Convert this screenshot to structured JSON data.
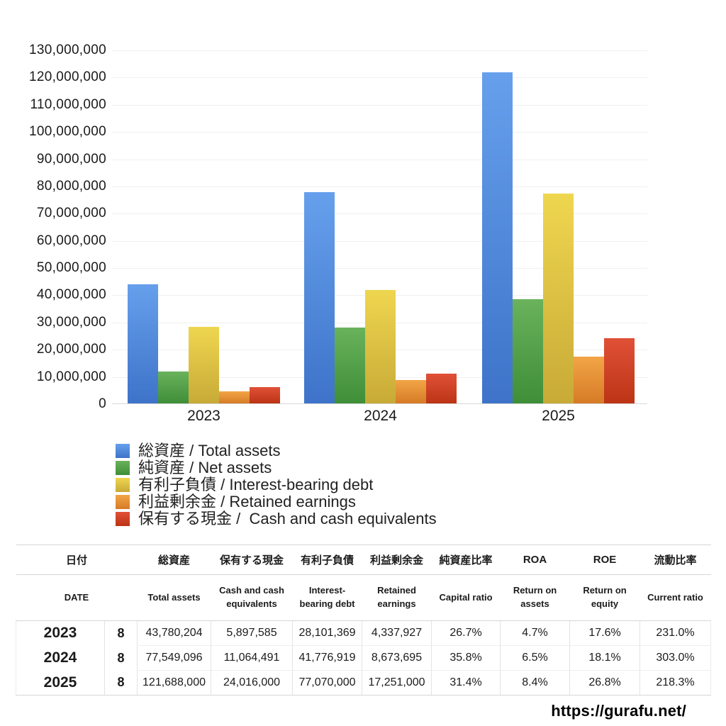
{
  "chart_data": {
    "type": "bar",
    "categories": [
      "2023",
      "2024",
      "2025"
    ],
    "series": [
      {
        "name": "total-assets",
        "label": "総資産 / Total assets",
        "color": "#4a86dd",
        "gradient": [
          "#66a0ec",
          "#3e73c9"
        ],
        "values": [
          43780204,
          77549096,
          121688000
        ]
      },
      {
        "name": "net-assets",
        "label": "純資産 / Net assets",
        "color": "#55a04a",
        "gradient": [
          "#6ab25c",
          "#3f8e38"
        ],
        "values": [
          11700000,
          27800000,
          38200000
        ]
      },
      {
        "name": "interest-bearing-debt",
        "label": "有利子負債 / Interest-bearing debt",
        "color": "#dcc143",
        "gradient": [
          "#efd64f",
          "#c8aa37"
        ],
        "values": [
          28101369,
          41776919,
          77070000
        ]
      },
      {
        "name": "retained-earnings",
        "label": "利益剰余金 / Retained earnings",
        "color": "#e8913a",
        "gradient": [
          "#f2a546",
          "#d67b27"
        ],
        "values": [
          4337927,
          8673695,
          17251000
        ]
      },
      {
        "name": "cash",
        "label": "保有する現金 /  Cash and cash equivalents",
        "color": "#d0422a",
        "gradient": [
          "#e05138",
          "#bc3415"
        ],
        "values": [
          5897585,
          11064491,
          24016000
        ]
      }
    ],
    "title": "",
    "xlabel": "",
    "ylabel": "",
    "ylim": [
      0,
      130000000
    ],
    "ytick_step": 10000000,
    "grid": true,
    "legend_position": "bottom-left"
  },
  "table": {
    "header_ja": [
      "日付",
      "総資産",
      "保有する現金",
      "有利子負債",
      "利益剰余金",
      "純資産比率",
      "ROA",
      "ROE",
      "流動比率"
    ],
    "header_en": [
      "DATE",
      "Total assets",
      "Cash and cash equivalents",
      "Interest-bearing debt",
      "Retained earnings",
      "Capital ratio",
      "Return on assets",
      "Return on equity",
      "Current ratio"
    ],
    "rows": [
      {
        "year": "2023",
        "month": "8",
        "values": [
          "43,780,204",
          "5,897,585",
          "28,101,369",
          "4,337,927",
          "26.7%",
          "4.7%",
          "17.6%",
          "231.0%"
        ]
      },
      {
        "year": "2024",
        "month": "8",
        "values": [
          "77,549,096",
          "11,064,491",
          "41,776,919",
          "8,673,695",
          "35.8%",
          "6.5%",
          "18.1%",
          "303.0%"
        ]
      },
      {
        "year": "2025",
        "month": "8",
        "values": [
          "121,688,000",
          "24,016,000",
          "77,070,000",
          "17,251,000",
          "31.4%",
          "8.4%",
          "26.8%",
          "218.3%"
        ]
      }
    ]
  },
  "watermark": {
    "url_text": "https://gurafu.net/"
  }
}
